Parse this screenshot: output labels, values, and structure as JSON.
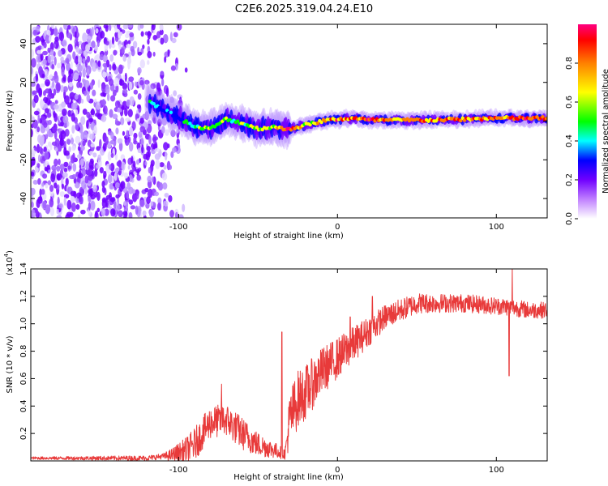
{
  "title": "C2E6.2025.319.04.24.E10",
  "chart_data": [
    {
      "type": "heatmap",
      "name": "spectrogram",
      "xlabel": "Height of straight line (km)",
      "ylabel": "Frequency (Hz)",
      "xlim": [
        -193,
        132
      ],
      "ylim": [
        -50,
        50
      ],
      "xticks": [
        -100,
        0,
        100
      ],
      "xtick_labels": [
        "-100",
        "0",
        "100"
      ],
      "yticks": [
        -40,
        -20,
        0,
        20,
        40
      ],
      "ytick_labels": [
        "-40",
        "-20",
        "0",
        "20",
        "40"
      ],
      "colorbar": {
        "label": "Normalized spectral amplitude",
        "range": [
          0,
          1
        ],
        "ticks": [
          0.0,
          0.2,
          0.4,
          0.6,
          0.8
        ],
        "tick_labels": [
          "0.0",
          "0.2",
          "0.4",
          "0.6",
          "0.8"
        ],
        "colors": [
          "#ffffff",
          "#c080ff",
          "#7000ff",
          "#0000ff",
          "#00ffff",
          "#00ff00",
          "#ffff00",
          "#ff8000",
          "#ff0000",
          "#ff0080"
        ]
      },
      "ridge": {
        "x": [
          -118,
          -110,
          -100,
          -90,
          -80,
          -70,
          -60,
          -50,
          -40,
          -35,
          -30,
          -20,
          -10,
          0,
          10,
          20,
          40,
          60,
          80,
          100,
          132
        ],
        "frequency": [
          10,
          6,
          2,
          -3,
          -4,
          1,
          -1,
          -4,
          -3,
          -4,
          -4,
          -2,
          0,
          1,
          1.5,
          0.5,
          0.5,
          0.5,
          1,
          1.5,
          1.5
        ],
        "amplitude": [
          0.5,
          0.3,
          0.4,
          0.55,
          0.6,
          0.55,
          0.55,
          0.6,
          0.7,
          0.95,
          0.95,
          0.7,
          0.8,
          0.9,
          0.85,
          0.95,
          0.85,
          0.85,
          0.85,
          0.85,
          0.9
        ]
      },
      "noise_region_x": [
        -193,
        -115
      ]
    },
    {
      "type": "line",
      "name": "snr",
      "xlabel": "Height of straight line (km)",
      "ylabel": "SNR (10 * v/v)",
      "y_scale_label": "(x10",
      "y_scale_exponent": "4",
      "xlim": [
        -193,
        132
      ],
      "ylim": [
        0,
        1.4
      ],
      "xticks": [
        -100,
        0,
        100
      ],
      "xtick_labels": [
        "-100",
        "0",
        "100"
      ],
      "yticks": [
        0.2,
        0.4,
        0.6,
        0.8,
        1.0,
        1.2,
        1.4
      ],
      "ytick_labels": [
        "0.2",
        "0.4",
        "0.6",
        "0.8",
        "1.0",
        "1.2",
        "1.4"
      ],
      "color": "#e83a3a",
      "trend": {
        "x": [
          -193,
          -120,
          -105,
          -95,
          -90,
          -80,
          -70,
          -60,
          -50,
          -40,
          -33,
          -30,
          -25,
          -20,
          -10,
          0,
          10,
          20,
          30,
          40,
          50,
          60,
          80,
          100,
          110,
          120,
          132
        ],
        "y": [
          0.02,
          0.02,
          0.04,
          0.08,
          0.12,
          0.28,
          0.3,
          0.2,
          0.12,
          0.08,
          0.05,
          0.3,
          0.45,
          0.5,
          0.65,
          0.75,
          0.85,
          0.95,
          1.05,
          1.1,
          1.15,
          1.15,
          1.15,
          1.13,
          1.12,
          1.1,
          1.1
        ]
      },
      "noise_amplitude": {
        "x": [
          -193,
          -110,
          -90,
          -60,
          -40,
          -33,
          -30,
          -20,
          0,
          30,
          60,
          132
        ],
        "y": [
          0.01,
          0.02,
          0.12,
          0.12,
          0.06,
          0.04,
          0.22,
          0.2,
          0.15,
          0.09,
          0.07,
          0.06
        ]
      },
      "spikes": [
        {
          "x": 108,
          "y": 0.62
        },
        {
          "x": 110,
          "y": 1.4
        },
        {
          "x": 22,
          "y": 1.2
        },
        {
          "x": 8,
          "y": 1.05
        },
        {
          "x": -35,
          "y": 0.94
        },
        {
          "x": -73,
          "y": 0.56
        }
      ]
    }
  ]
}
